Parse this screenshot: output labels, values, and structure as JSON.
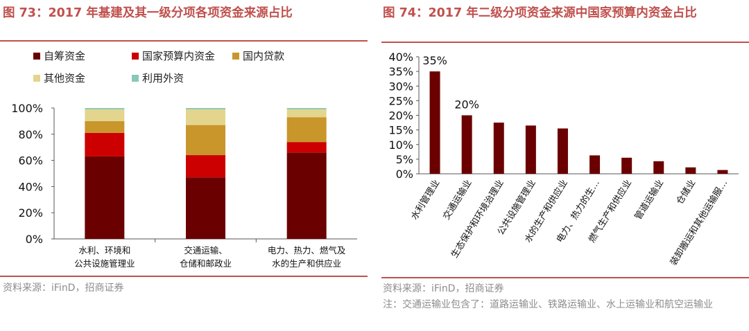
{
  "left": {
    "title": "图 73：2017 年基建及其一级分项各项资金来源占比",
    "source": "资料来源：iFinD，招商证券"
  },
  "right": {
    "title": "图 74：2017 年二级分项资金来源中国家预算内资金占比",
    "source": "资料来源：iFinD，招商证券",
    "note": "注：交通运输业包含了：道路运输业、铁路运输业、水上运输业和航空运输业"
  },
  "chart_data": [
    {
      "type": "bar",
      "stacked": true,
      "categories": [
        [
          "水利、环境和",
          "公共设施管理业"
        ],
        [
          "交通运输、",
          "仓储和邮政业"
        ],
        [
          "电力、热力、燃气及",
          "水的生产和供应业"
        ]
      ],
      "series": [
        {
          "name": "自筹资金",
          "color": "#6b0000",
          "values": [
            63,
            47,
            66
          ]
        },
        {
          "name": "国家预算内资金",
          "color": "#cc0000",
          "values": [
            18,
            17,
            8
          ]
        },
        {
          "name": "国内贷款",
          "color": "#c9962c",
          "values": [
            9,
            23,
            19
          ]
        },
        {
          "name": "其他资金",
          "color": "#e3d58d",
          "values": [
            9,
            12,
            6
          ]
        },
        {
          "name": "利用外资",
          "color": "#88c8b8",
          "values": [
            1,
            1,
            1
          ]
        }
      ],
      "yticks": [
        "0%",
        "20%",
        "40%",
        "60%",
        "80%",
        "100%"
      ],
      "ylim": [
        0,
        100
      ],
      "legend": "top"
    },
    {
      "type": "bar",
      "categories": [
        "水利管理业",
        "交通运输业",
        "生态保护和环境治理业",
        "公共设施管理业",
        "水的生产和供应业",
        "电力、热力的生…",
        "燃气生产和供应业",
        "管道运输业",
        "仓储业",
        "装卸搬运和其他运输服…"
      ],
      "values": [
        35,
        20,
        17.5,
        16.5,
        15.5,
        6.3,
        5.5,
        4.3,
        2.2,
        1.3
      ],
      "data_labels": [
        "35%",
        "20%",
        "",
        "",
        "",
        "",
        "",
        "",
        "",
        ""
      ],
      "color": "#6b0000",
      "yticks": [
        "0%",
        "5%",
        "10%",
        "15%",
        "20%",
        "25%",
        "30%",
        "35%",
        "40%"
      ],
      "ylim": [
        0,
        40
      ]
    }
  ]
}
